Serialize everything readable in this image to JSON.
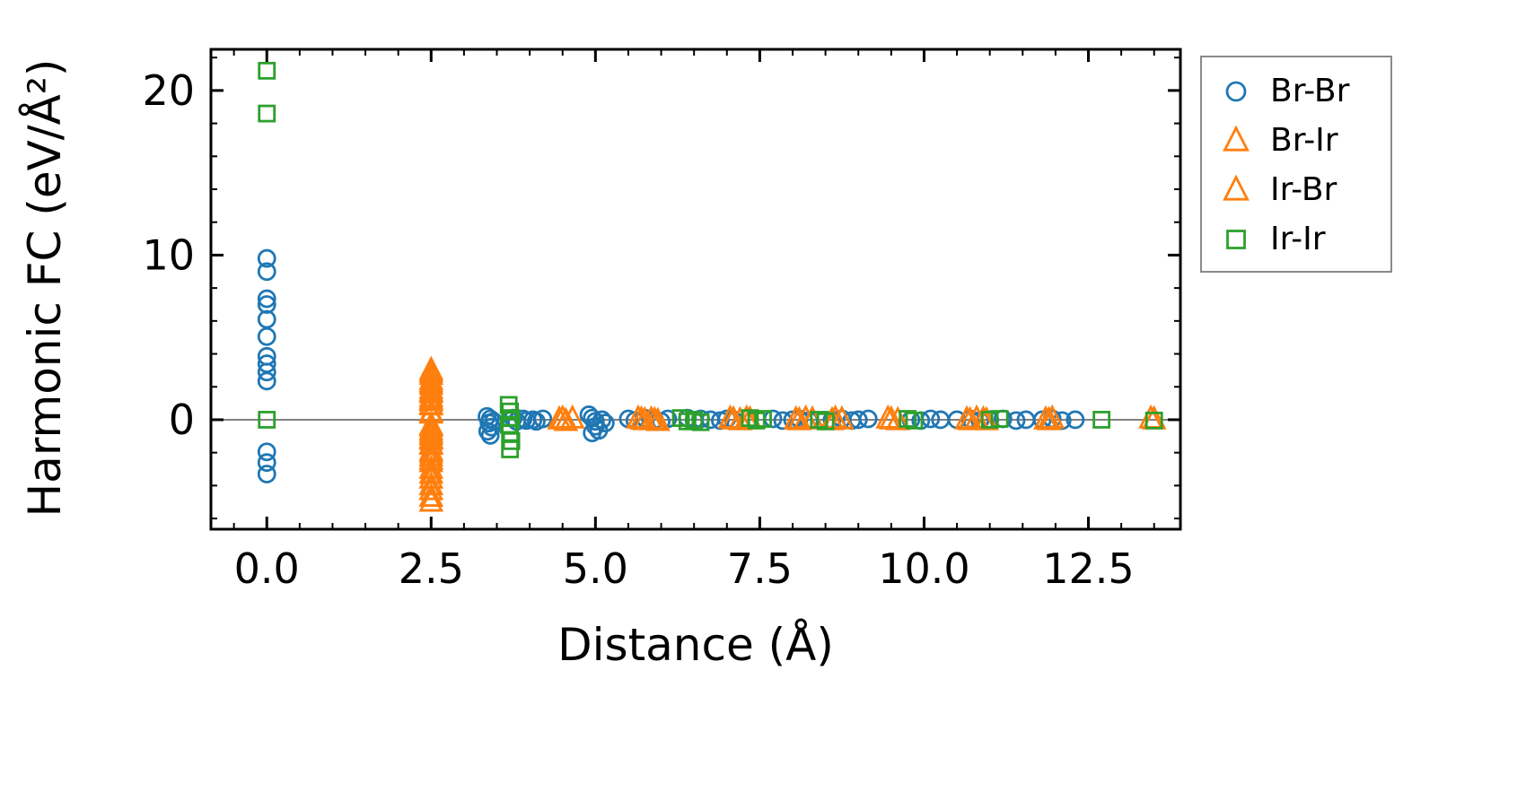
{
  "chart_data": {
    "type": "scatter",
    "title": "",
    "xlabel": "Distance (Å)",
    "ylabel": "Harmonic FC (eV/Å²)",
    "xlim": [
      -0.85,
      13.9
    ],
    "ylim": [
      -6.65,
      22.5
    ],
    "xticks": [
      0.0,
      2.5,
      5.0,
      7.5,
      10.0,
      12.5
    ],
    "xtick_labels": [
      "0.0",
      "2.5",
      "5.0",
      "7.5",
      "10.0",
      "12.5"
    ],
    "x_minor_step": 0.5,
    "yticks": [
      0,
      10,
      20
    ],
    "ytick_labels": [
      "0",
      "10",
      "20"
    ],
    "y_minor_step": 2,
    "grid": false,
    "legend_position": "outside-right",
    "zero_line": {
      "y": 0,
      "color": "#808080"
    },
    "axis_color": "#000000",
    "series": [
      {
        "name": "Br-Br",
        "marker": "circle",
        "color": "#1f77b4",
        "points": [
          [
            0,
            9.8
          ],
          [
            0,
            9.0
          ],
          [
            0,
            7.35
          ],
          [
            0,
            7.0
          ],
          [
            0,
            6.1
          ],
          [
            0,
            5.05
          ],
          [
            0,
            3.85
          ],
          [
            0,
            3.4
          ],
          [
            0,
            2.9
          ],
          [
            0,
            2.35
          ],
          [
            0,
            -1.95
          ],
          [
            0,
            -2.6
          ],
          [
            0,
            -3.3
          ],
          [
            3.35,
            0.2
          ],
          [
            3.4,
            0.05
          ],
          [
            3.38,
            -0.2
          ],
          [
            3.42,
            -0.45
          ],
          [
            3.36,
            -0.7
          ],
          [
            3.4,
            -0.95
          ],
          [
            3.45,
            -0.1
          ],
          [
            3.75,
            0.1
          ],
          [
            3.8,
            -0.1
          ],
          [
            3.9,
            0.05
          ],
          [
            3.95,
            -0.05
          ],
          [
            4.05,
            0.0
          ],
          [
            4.1,
            -0.1
          ],
          [
            4.2,
            0.05
          ],
          [
            4.9,
            0.3
          ],
          [
            4.95,
            0.1
          ],
          [
            5.0,
            -0.1
          ],
          [
            5.0,
            -0.4
          ],
          [
            5.05,
            -0.65
          ],
          [
            4.95,
            -0.8
          ],
          [
            5.1,
            0.0
          ],
          [
            5.15,
            -0.2
          ],
          [
            5.5,
            0.05
          ],
          [
            5.6,
            -0.05
          ],
          [
            5.75,
            0.1
          ],
          [
            5.9,
            0.0
          ],
          [
            6.0,
            -0.1
          ],
          [
            6.1,
            0.05
          ],
          [
            6.4,
            0.1
          ],
          [
            6.5,
            -0.05
          ],
          [
            6.6,
            0.05
          ],
          [
            6.75,
            0.0
          ],
          [
            6.9,
            -0.05
          ],
          [
            7.0,
            0.05
          ],
          [
            7.1,
            0.0
          ],
          [
            7.7,
            0.05
          ],
          [
            7.85,
            -0.05
          ],
          [
            8.0,
            0.0
          ],
          [
            8.1,
            0.05
          ],
          [
            8.25,
            -0.05
          ],
          [
            8.6,
            0.0
          ],
          [
            8.75,
            0.05
          ],
          [
            8.9,
            -0.05
          ],
          [
            9.0,
            0.0
          ],
          [
            9.15,
            0.05
          ],
          [
            9.8,
            0.0
          ],
          [
            9.95,
            -0.05
          ],
          [
            10.1,
            0.05
          ],
          [
            10.25,
            0.0
          ],
          [
            10.5,
            0.0
          ],
          [
            10.7,
            0.05
          ],
          [
            10.85,
            -0.05
          ],
          [
            11.0,
            0.0
          ],
          [
            11.2,
            0.05
          ],
          [
            11.4,
            -0.05
          ],
          [
            11.55,
            0.0
          ],
          [
            11.8,
            0.0
          ],
          [
            11.95,
            0.05
          ],
          [
            12.1,
            -0.05
          ],
          [
            12.3,
            0.0
          ]
        ]
      },
      {
        "name": "Br-Ir",
        "marker": "triangle",
        "color": "#ff7f0e",
        "points": [
          [
            2.5,
            3.0
          ],
          [
            2.5,
            2.7
          ],
          [
            2.5,
            2.4
          ],
          [
            2.5,
            2.1
          ],
          [
            2.5,
            1.85
          ],
          [
            2.5,
            1.6
          ],
          [
            2.5,
            1.35
          ],
          [
            2.5,
            1.1
          ],
          [
            2.5,
            0.85
          ],
          [
            2.5,
            0.35
          ],
          [
            2.5,
            -0.35
          ],
          [
            2.5,
            -0.65
          ],
          [
            2.5,
            -0.95
          ],
          [
            2.5,
            -1.25
          ],
          [
            2.5,
            -1.55
          ],
          [
            2.5,
            -1.9
          ],
          [
            2.5,
            -2.25
          ],
          [
            2.5,
            -2.6
          ],
          [
            2.5,
            -3.0
          ],
          [
            2.5,
            -3.6
          ],
          [
            2.5,
            -4.3
          ],
          [
            2.5,
            -5.0
          ],
          [
            4.45,
            0.0
          ],
          [
            4.55,
            -0.1
          ],
          [
            4.65,
            0.05
          ],
          [
            5.65,
            0.05
          ],
          [
            5.75,
            -0.05
          ],
          [
            5.85,
            0.0
          ],
          [
            5.95,
            -0.1
          ],
          [
            7.05,
            0.05
          ],
          [
            7.2,
            -0.05
          ],
          [
            7.35,
            0.0
          ],
          [
            8.05,
            0.0
          ],
          [
            8.2,
            0.05
          ],
          [
            8.6,
            -0.05
          ],
          [
            8.75,
            0.0
          ],
          [
            9.45,
            0.05
          ],
          [
            9.6,
            -0.05
          ],
          [
            10.65,
            0.0
          ],
          [
            10.8,
            0.05
          ],
          [
            10.95,
            -0.05
          ],
          [
            11.85,
            0.0
          ],
          [
            11.95,
            0.05
          ],
          [
            13.5,
            0.0
          ]
        ]
      },
      {
        "name": "Ir-Br",
        "marker": "triangle",
        "color": "#ff7f0e",
        "points": [
          [
            2.5,
            2.85
          ],
          [
            2.5,
            2.25
          ],
          [
            2.5,
            1.7
          ],
          [
            2.5,
            1.2
          ],
          [
            2.5,
            0.9
          ],
          [
            2.5,
            0.45
          ],
          [
            2.5,
            -0.45
          ],
          [
            2.5,
            -0.8
          ],
          [
            2.5,
            -1.15
          ],
          [
            2.5,
            -1.5
          ],
          [
            2.5,
            -2.05
          ],
          [
            2.5,
            -2.45
          ],
          [
            2.5,
            -3.3
          ],
          [
            2.5,
            -4.0
          ],
          [
            2.5,
            -4.7
          ],
          [
            4.5,
            0.05
          ],
          [
            5.7,
            0.0
          ],
          [
            5.9,
            -0.05
          ],
          [
            7.1,
            0.0
          ],
          [
            7.3,
            0.05
          ],
          [
            8.1,
            -0.05
          ],
          [
            8.3,
            0.0
          ],
          [
            8.65,
            0.05
          ],
          [
            9.5,
            0.0
          ],
          [
            10.7,
            -0.05
          ],
          [
            10.9,
            0.0
          ],
          [
            11.9,
            -0.05
          ],
          [
            13.45,
            0.05
          ]
        ]
      },
      {
        "name": "Ir-Ir",
        "marker": "square",
        "color": "#2ca02c",
        "points": [
          [
            0,
            21.2
          ],
          [
            0,
            18.6
          ],
          [
            0,
            0.0
          ],
          [
            3.68,
            0.9
          ],
          [
            3.7,
            0.5
          ],
          [
            3.72,
            0.1
          ],
          [
            3.68,
            -0.3
          ],
          [
            3.7,
            -0.8
          ],
          [
            3.72,
            -1.3
          ],
          [
            3.7,
            -1.8
          ],
          [
            6.3,
            0.1
          ],
          [
            6.4,
            -0.1
          ],
          [
            6.5,
            0.0
          ],
          [
            6.6,
            -0.15
          ],
          [
            7.35,
            0.1
          ],
          [
            7.45,
            -0.05
          ],
          [
            7.55,
            0.05
          ],
          [
            8.4,
            0.0
          ],
          [
            8.5,
            -0.1
          ],
          [
            9.75,
            0.05
          ],
          [
            9.85,
            -0.05
          ],
          [
            11.0,
            0.0
          ],
          [
            11.15,
            0.05
          ],
          [
            12.7,
            0.0
          ],
          [
            13.5,
            -0.05
          ]
        ]
      }
    ]
  }
}
